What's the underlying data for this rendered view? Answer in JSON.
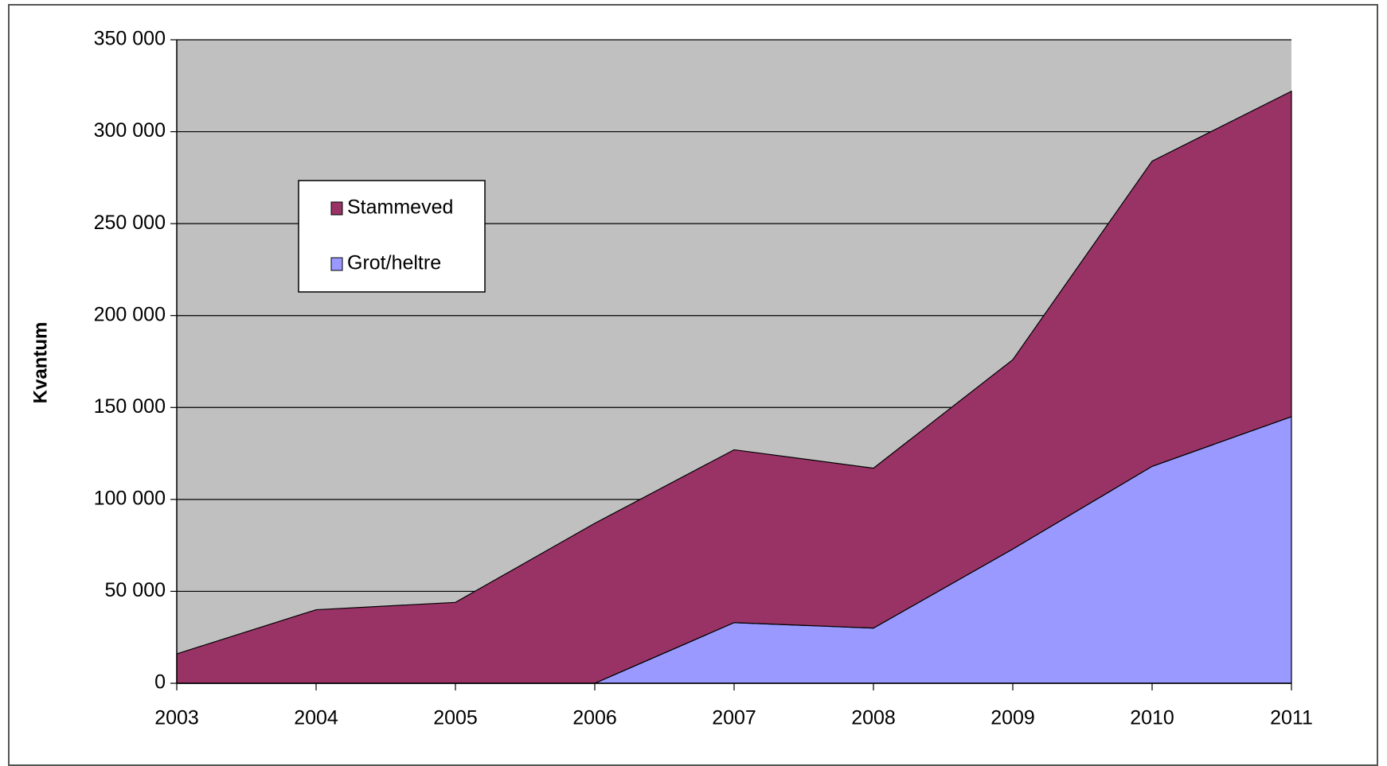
{
  "chart_data": {
    "type": "stacked-area",
    "y_label": "Kvantum",
    "categories": [
      "2003",
      "2004",
      "2005",
      "2006",
      "2007",
      "2008",
      "2009",
      "2010",
      "2011"
    ],
    "series": [
      {
        "name": "Stammeved",
        "color": "#993366",
        "values": [
          16000,
          40000,
          44000,
          87000,
          94000,
          87000,
          103000,
          166000,
          177000
        ]
      },
      {
        "name": "Grot/heltre",
        "color": "#9999ff",
        "values": [
          0,
          0,
          0,
          0,
          33000,
          30000,
          73000,
          118000,
          145000
        ]
      }
    ],
    "ylim": [
      0,
      350000
    ],
    "yticks": [
      0,
      {
        "value": 50000,
        "label": "50 000"
      },
      {
        "value": 100000,
        "label": "100 000"
      },
      {
        "value": 150000,
        "label": "150 000"
      },
      {
        "value": 200000,
        "label": "200 000"
      },
      {
        "value": 250000,
        "label": "250 000"
      },
      {
        "value": 300000,
        "label": "300 000"
      },
      {
        "value": 350000,
        "label": "350 000"
      }
    ],
    "grid": true,
    "plot_background": "#c0c0c0",
    "legend": "upper-left"
  }
}
